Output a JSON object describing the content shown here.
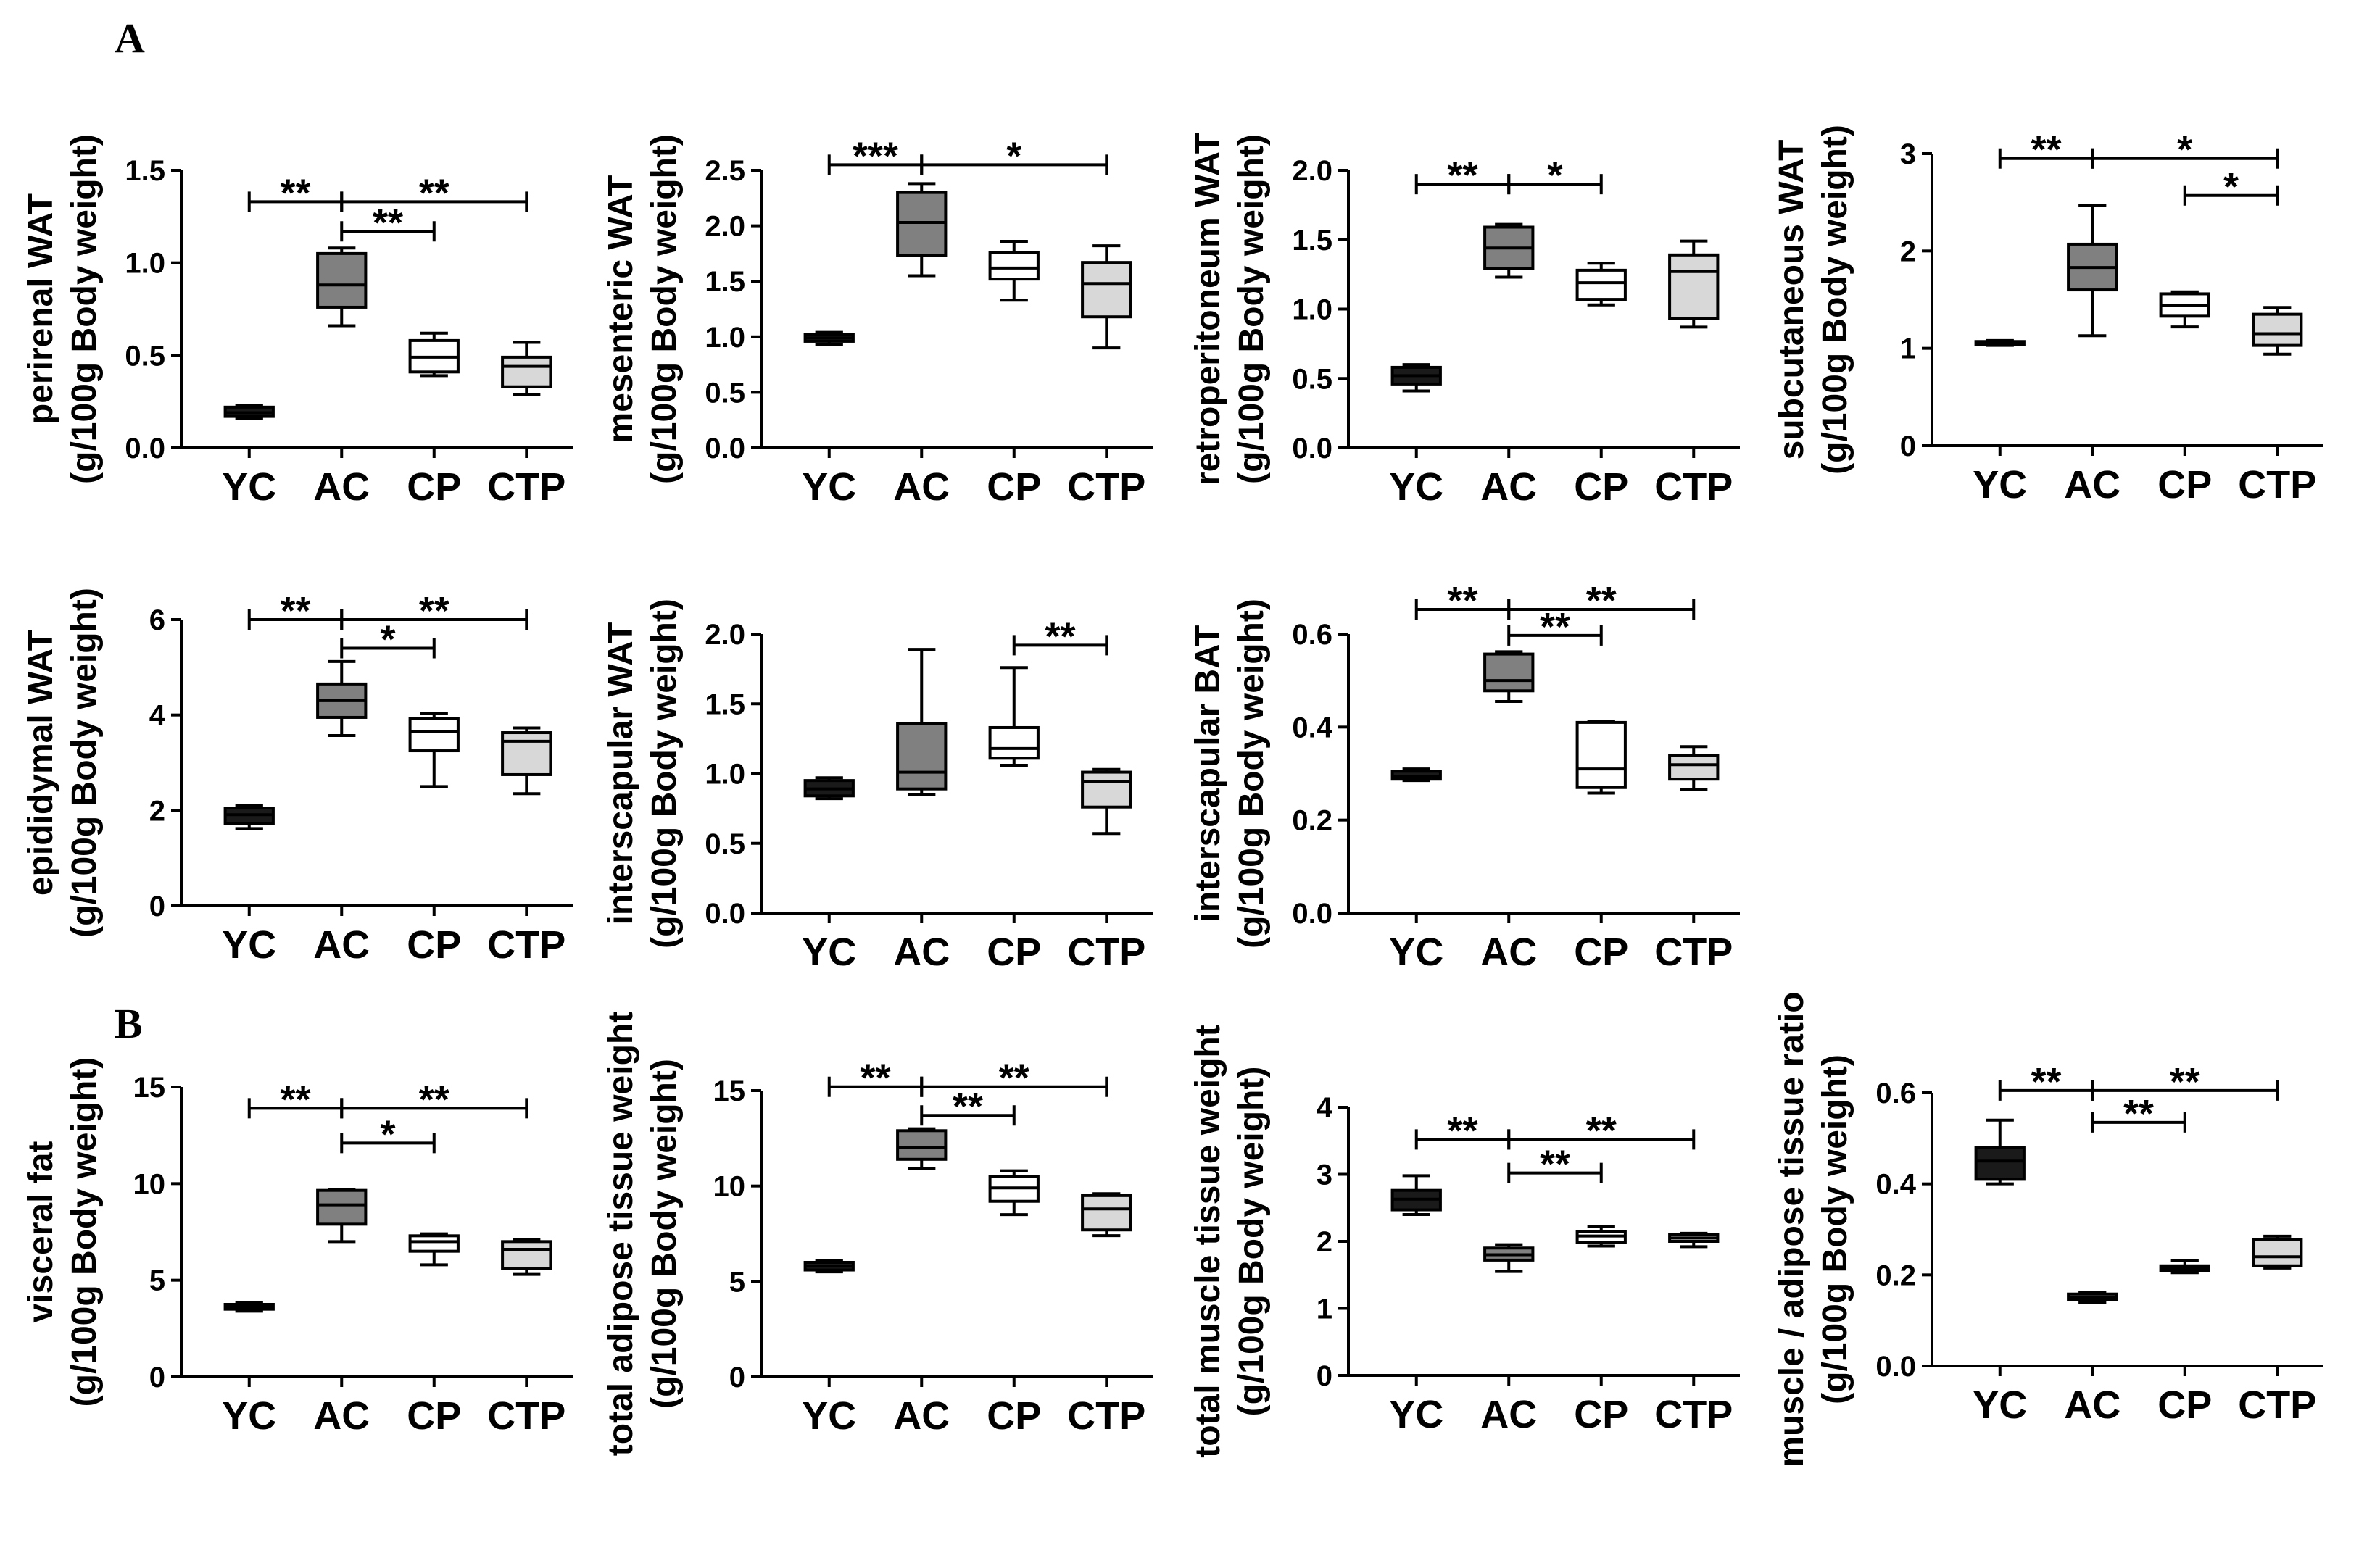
{
  "panel_labels": {
    "A": "A",
    "B": "B"
  },
  "colors": {
    "YC": "#1a1a1a",
    "AC": "#808080",
    "CP": "#ffffff",
    "CTP": "#d8d8d8",
    "stroke": "#000000"
  },
  "chart_data": [
    {
      "type": "box",
      "ylabel1": "perirenal WAT",
      "ylabel2": "(g/100g Body weight)",
      "categories": [
        "YC",
        "AC",
        "CP",
        "CTP"
      ],
      "ylim": [
        0,
        1.5
      ],
      "yticks": [
        "0.0",
        "0.5",
        "1.0",
        "1.5"
      ],
      "boxes": [
        {
          "min": 0.16,
          "q1": 0.17,
          "median": 0.19,
          "q3": 0.22,
          "max": 0.23
        },
        {
          "min": 0.66,
          "q1": 0.76,
          "median": 0.88,
          "q3": 1.05,
          "max": 1.08
        },
        {
          "min": 0.39,
          "q1": 0.41,
          "median": 0.49,
          "q3": 0.58,
          "max": 0.62
        },
        {
          "min": 0.29,
          "q1": 0.33,
          "median": 0.44,
          "q3": 0.49,
          "max": 0.57
        }
      ],
      "comparisons": [
        {
          "from": "YC",
          "to": "AC",
          "label": "**",
          "y": 1.33
        },
        {
          "from": "AC",
          "to": "CTP",
          "label": "**",
          "y": 1.33
        },
        {
          "from": "AC",
          "to": "CP",
          "label": "**",
          "y": 1.17
        }
      ]
    },
    {
      "type": "box",
      "ylabel1": "mesenteric WAT",
      "ylabel2": "(g/100g Body weight)",
      "categories": [
        "YC",
        "AC",
        "CP",
        "CTP"
      ],
      "ylim": [
        0,
        2.5
      ],
      "yticks": [
        "0.0",
        "0.5",
        "1.0",
        "1.5",
        "2.0",
        "2.5"
      ],
      "boxes": [
        {
          "min": 0.93,
          "q1": 0.96,
          "median": 0.99,
          "q3": 1.02,
          "max": 1.04
        },
        {
          "min": 1.55,
          "q1": 1.73,
          "median": 2.03,
          "q3": 2.3,
          "max": 2.38
        },
        {
          "min": 1.33,
          "q1": 1.52,
          "median": 1.62,
          "q3": 1.76,
          "max": 1.86
        },
        {
          "min": 0.9,
          "q1": 1.18,
          "median": 1.48,
          "q3": 1.67,
          "max": 1.82
        }
      ],
      "comparisons": [
        {
          "from": "YC",
          "to": "AC",
          "label": "***",
          "y": 2.55
        },
        {
          "from": "AC",
          "to": "CTP",
          "label": "*",
          "y": 2.55
        }
      ]
    },
    {
      "type": "box",
      "ylabel1": "retroperitoneum WAT",
      "ylabel2": "(g/100g Body weight)",
      "categories": [
        "YC",
        "AC",
        "CP",
        "CTP"
      ],
      "ylim": [
        0,
        2.0
      ],
      "yticks": [
        "0.0",
        "0.5",
        "1.0",
        "1.5",
        "2.0"
      ],
      "boxes": [
        {
          "min": 0.41,
          "q1": 0.46,
          "median": 0.52,
          "q3": 0.58,
          "max": 0.6
        },
        {
          "min": 1.23,
          "q1": 1.29,
          "median": 1.44,
          "q3": 1.59,
          "max": 1.61
        },
        {
          "min": 1.03,
          "q1": 1.07,
          "median": 1.19,
          "q3": 1.28,
          "max": 1.33
        },
        {
          "min": 0.87,
          "q1": 0.93,
          "median": 1.27,
          "q3": 1.39,
          "max": 1.49
        }
      ],
      "comparisons": [
        {
          "from": "YC",
          "to": "AC",
          "label": "**",
          "y": 1.9
        },
        {
          "from": "AC",
          "to": "CP",
          "label": "*",
          "y": 1.9
        }
      ]
    },
    {
      "type": "box",
      "ylabel1": "subcutaneous WAT",
      "ylabel2": "(g/100g Body weight)",
      "categories": [
        "YC",
        "AC",
        "CP",
        "CTP"
      ],
      "ylim": [
        0,
        3
      ],
      "yticks": [
        "0",
        "1",
        "2",
        "3"
      ],
      "boxes": [
        {
          "min": 1.03,
          "q1": 1.04,
          "median": 1.05,
          "q3": 1.07,
          "max": 1.08
        },
        {
          "min": 1.13,
          "q1": 1.6,
          "median": 1.83,
          "q3": 2.07,
          "max": 2.47
        },
        {
          "min": 1.22,
          "q1": 1.33,
          "median": 1.44,
          "q3": 1.56,
          "max": 1.58
        },
        {
          "min": 0.94,
          "q1": 1.03,
          "median": 1.15,
          "q3": 1.35,
          "max": 1.42
        }
      ],
      "comparisons": [
        {
          "from": "YC",
          "to": "AC",
          "label": "**",
          "y": 2.95
        },
        {
          "from": "AC",
          "to": "CTP",
          "label": "*",
          "y": 2.95
        },
        {
          "from": "CP",
          "to": "CTP",
          "label": "*",
          "y": 2.57
        }
      ]
    },
    {
      "type": "box",
      "ylabel1": "epididymal WAT",
      "ylabel2": "(g/100g Body weight)",
      "categories": [
        "YC",
        "AC",
        "CP",
        "CTP"
      ],
      "ylim": [
        0,
        6
      ],
      "yticks": [
        "0",
        "2",
        "4",
        "6"
      ],
      "boxes": [
        {
          "min": 1.62,
          "q1": 1.73,
          "median": 1.91,
          "q3": 2.05,
          "max": 2.1
        },
        {
          "min": 3.57,
          "q1": 3.95,
          "median": 4.3,
          "q3": 4.65,
          "max": 5.12
        },
        {
          "min": 2.5,
          "q1": 3.25,
          "median": 3.65,
          "q3": 3.93,
          "max": 4.03
        },
        {
          "min": 2.35,
          "q1": 2.75,
          "median": 3.45,
          "q3": 3.63,
          "max": 3.73
        }
      ],
      "comparisons": [
        {
          "from": "YC",
          "to": "AC",
          "label": "**",
          "y": 6.0
        },
        {
          "from": "AC",
          "to": "CTP",
          "label": "**",
          "y": 6.0
        },
        {
          "from": "AC",
          "to": "CP",
          "label": "*",
          "y": 5.4
        }
      ]
    },
    {
      "type": "box",
      "ylabel1": "interscapular WAT",
      "ylabel2": "(g/100g Body weight)",
      "categories": [
        "YC",
        "AC",
        "CP",
        "CTP"
      ],
      "ylim": [
        0,
        2.0
      ],
      "yticks": [
        "0.0",
        "0.5",
        "1.0",
        "1.5",
        "2.0"
      ],
      "boxes": [
        {
          "min": 0.82,
          "q1": 0.84,
          "median": 0.89,
          "q3": 0.95,
          "max": 0.97
        },
        {
          "min": 0.85,
          "q1": 0.89,
          "median": 1.01,
          "q3": 1.36,
          "max": 1.89
        },
        {
          "min": 1.06,
          "q1": 1.11,
          "median": 1.18,
          "q3": 1.33,
          "max": 1.76
        },
        {
          "min": 0.57,
          "q1": 0.76,
          "median": 0.94,
          "q3": 1.01,
          "max": 1.03
        }
      ],
      "comparisons": [
        {
          "from": "CP",
          "to": "CTP",
          "label": "**",
          "y": 1.92
        }
      ]
    },
    {
      "type": "box",
      "ylabel1": "interscapular BAT",
      "ylabel2": "(g/100g Body weight)",
      "categories": [
        "YC",
        "AC",
        "CP",
        "CTP"
      ],
      "ylim": [
        0,
        0.6
      ],
      "yticks": [
        "0.0",
        "0.2",
        "0.4",
        "0.6"
      ],
      "boxes": [
        {
          "min": 0.285,
          "q1": 0.288,
          "median": 0.294,
          "q3": 0.305,
          "max": 0.31
        },
        {
          "min": 0.455,
          "q1": 0.478,
          "median": 0.5,
          "q3": 0.557,
          "max": 0.562
        },
        {
          "min": 0.258,
          "q1": 0.27,
          "median": 0.31,
          "q3": 0.41,
          "max": 0.413
        },
        {
          "min": 0.266,
          "q1": 0.288,
          "median": 0.319,
          "q3": 0.339,
          "max": 0.358
        }
      ],
      "comparisons": [
        {
          "from": "YC",
          "to": "AC",
          "label": "**",
          "y": 0.653
        },
        {
          "from": "AC",
          "to": "CTP",
          "label": "**",
          "y": 0.653
        },
        {
          "from": "AC",
          "to": "CP",
          "label": "**",
          "y": 0.597
        }
      ]
    },
    {
      "type": "box",
      "ylabel1": "visceral fat",
      "ylabel2": "(g/100g Body weight)",
      "categories": [
        "YC",
        "AC",
        "CP",
        "CTP"
      ],
      "ylim": [
        0,
        15
      ],
      "yticks": [
        "0",
        "5",
        "10",
        "15"
      ],
      "boxes": [
        {
          "min": 3.4,
          "q1": 3.5,
          "median": 3.6,
          "q3": 3.75,
          "max": 3.85
        },
        {
          "min": 7.0,
          "q1": 7.9,
          "median": 8.9,
          "q3": 9.65,
          "max": 9.7
        },
        {
          "min": 5.8,
          "q1": 6.5,
          "median": 7.0,
          "q3": 7.3,
          "max": 7.4
        },
        {
          "min": 5.3,
          "q1": 5.6,
          "median": 6.6,
          "q3": 7.0,
          "max": 7.1
        }
      ],
      "comparisons": [
        {
          "from": "YC",
          "to": "AC",
          "label": "**",
          "y": 13.9
        },
        {
          "from": "AC",
          "to": "CTP",
          "label": "**",
          "y": 13.9
        },
        {
          "from": "AC",
          "to": "CP",
          "label": "*",
          "y": 12.1
        }
      ]
    },
    {
      "type": "box",
      "ylabel1": "total adipose tissue weight",
      "ylabel2": "(g/100g Body weight)",
      "categories": [
        "YC",
        "AC",
        "CP",
        "CTP"
      ],
      "ylim": [
        0,
        15
      ],
      "yticks": [
        "0",
        "5",
        "10",
        "15"
      ],
      "boxes": [
        {
          "min": 5.5,
          "q1": 5.6,
          "median": 5.8,
          "q3": 6.0,
          "max": 6.1
        },
        {
          "min": 10.9,
          "q1": 11.4,
          "median": 12.0,
          "q3": 12.9,
          "max": 13.0
        },
        {
          "min": 8.5,
          "q1": 9.2,
          "median": 9.9,
          "q3": 10.5,
          "max": 10.8
        },
        {
          "min": 7.4,
          "q1": 7.7,
          "median": 8.8,
          "q3": 9.5,
          "max": 9.6
        }
      ],
      "comparisons": [
        {
          "from": "YC",
          "to": "AC",
          "label": "**",
          "y": 15.2
        },
        {
          "from": "AC",
          "to": "CTP",
          "label": "**",
          "y": 15.2
        },
        {
          "from": "AC",
          "to": "CP",
          "label": "**",
          "y": 13.7
        }
      ]
    },
    {
      "type": "box",
      "ylabel1": "total muscle tissue weight",
      "ylabel2": "(g/100g Body weight)",
      "categories": [
        "YC",
        "AC",
        "CP",
        "CTP"
      ],
      "ylim": [
        0,
        4
      ],
      "yticks": [
        "0",
        "1",
        "2",
        "3",
        "4"
      ],
      "boxes": [
        {
          "min": 2.4,
          "q1": 2.47,
          "median": 2.63,
          "q3": 2.76,
          "max": 2.98
        },
        {
          "min": 1.55,
          "q1": 1.72,
          "median": 1.8,
          "q3": 1.9,
          "max": 1.95
        },
        {
          "min": 1.93,
          "q1": 1.98,
          "median": 2.08,
          "q3": 2.15,
          "max": 2.22
        },
        {
          "min": 1.92,
          "q1": 2.0,
          "median": 2.05,
          "q3": 2.1,
          "max": 2.12
        }
      ],
      "comparisons": [
        {
          "from": "YC",
          "to": "AC",
          "label": "**",
          "y": 3.52
        },
        {
          "from": "AC",
          "to": "CTP",
          "label": "**",
          "y": 3.52
        },
        {
          "from": "AC",
          "to": "CP",
          "label": "**",
          "y": 3.02
        }
      ]
    },
    {
      "type": "box",
      "ylabel1": "muscle / adipose tissue ratio",
      "ylabel2": "(g/100g Body weight)",
      "categories": [
        "YC",
        "AC",
        "CP",
        "CTP"
      ],
      "ylim": [
        0,
        0.6
      ],
      "yticks": [
        "0.0",
        "0.2",
        "0.4",
        "0.6"
      ],
      "boxes": [
        {
          "min": 0.4,
          "q1": 0.41,
          "median": 0.45,
          "q3": 0.48,
          "max": 0.54
        },
        {
          "min": 0.14,
          "q1": 0.145,
          "median": 0.15,
          "q3": 0.158,
          "max": 0.162
        },
        {
          "min": 0.205,
          "q1": 0.21,
          "median": 0.215,
          "q3": 0.22,
          "max": 0.232
        },
        {
          "min": 0.215,
          "q1": 0.22,
          "median": 0.24,
          "q3": 0.278,
          "max": 0.285
        }
      ],
      "comparisons": [
        {
          "from": "YC",
          "to": "AC",
          "label": "**",
          "y": 0.605
        },
        {
          "from": "AC",
          "to": "CTP",
          "label": "**",
          "y": 0.605
        },
        {
          "from": "AC",
          "to": "CP",
          "label": "**",
          "y": 0.535
        }
      ]
    }
  ]
}
